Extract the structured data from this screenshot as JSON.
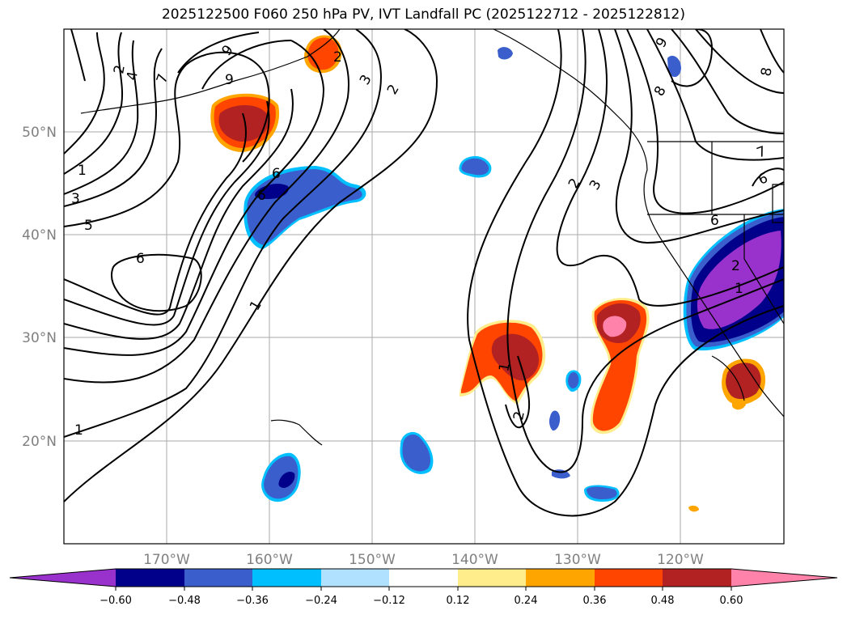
{
  "title": "2025122500 F060 250 hPa PV, IVT Landfall PC (2025122712 - 2025122812)",
  "map": {
    "lon_range": [
      -180,
      -110
    ],
    "lat_range": [
      10,
      60
    ],
    "lat_ticks": [
      {
        "value": 50,
        "label": "50°N"
      },
      {
        "value": 40,
        "label": "40°N"
      },
      {
        "value": 30,
        "label": "30°N"
      },
      {
        "value": 20,
        "label": "20°N"
      }
    ],
    "lon_ticks": [
      {
        "value": -170,
        "label": "170°W"
      },
      {
        "value": -160,
        "label": "160°W"
      },
      {
        "value": -150,
        "label": "150°W"
      },
      {
        "value": -140,
        "label": "140°W"
      },
      {
        "value": -130,
        "label": "130°W"
      },
      {
        "value": -120,
        "label": "120°W"
      }
    ],
    "contour_labels": [
      "2",
      "4",
      "7",
      "9",
      "9",
      "1",
      "3",
      "5",
      "6",
      "6",
      "1",
      "1",
      "6",
      "2",
      "3",
      "2",
      "1",
      "2",
      "2",
      "3",
      "8",
      "9",
      "8",
      "7",
      "6",
      "6",
      "2",
      "1"
    ]
  },
  "colorbar": {
    "colors": [
      "#9932cc",
      "#00008b",
      "#3a5fcd",
      "#00bfff",
      "#b0e2ff",
      "#ffffff",
      "#ffec8b",
      "#ffa500",
      "#ff4500",
      "#b22222",
      "#ff82ab"
    ],
    "tick_labels": [
      "−0.60",
      "−0.48",
      "−0.36",
      "−0.24",
      "−0.12",
      "0.12",
      "0.24",
      "0.36",
      "0.48",
      "0.60"
    ]
  }
}
